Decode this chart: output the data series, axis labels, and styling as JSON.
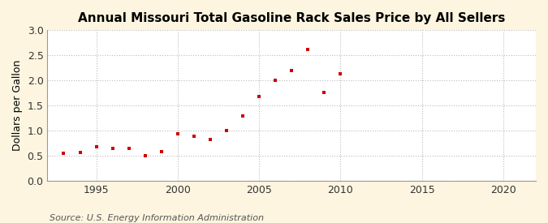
{
  "title": "Annual Missouri Total Gasoline Rack Sales Price by All Sellers",
  "ylabel": "Dollars per Gallon",
  "source": "Source: U.S. Energy Information Administration",
  "fig_background_color": "#fdf5e0",
  "plot_background_color": "#ffffff",
  "marker_color": "#cc0000",
  "grid_color": "#bbbbbb",
  "years": [
    1993,
    1994,
    1995,
    1996,
    1997,
    1998,
    1999,
    2000,
    2001,
    2002,
    2003,
    2004,
    2005,
    2006,
    2007,
    2008,
    2009,
    2010
  ],
  "values": [
    0.55,
    0.57,
    0.67,
    0.65,
    0.64,
    0.49,
    0.58,
    0.93,
    0.88,
    0.82,
    0.99,
    1.28,
    1.67,
    1.99,
    2.19,
    2.61,
    1.75,
    2.13
  ],
  "xlim": [
    1992,
    2022
  ],
  "ylim": [
    0.0,
    3.0
  ],
  "xticks": [
    1995,
    2000,
    2005,
    2010,
    2015,
    2020
  ],
  "yticks": [
    0.0,
    0.5,
    1.0,
    1.5,
    2.0,
    2.5,
    3.0
  ],
  "title_fontsize": 11,
  "tick_fontsize": 9,
  "ylabel_fontsize": 9,
  "source_fontsize": 8
}
